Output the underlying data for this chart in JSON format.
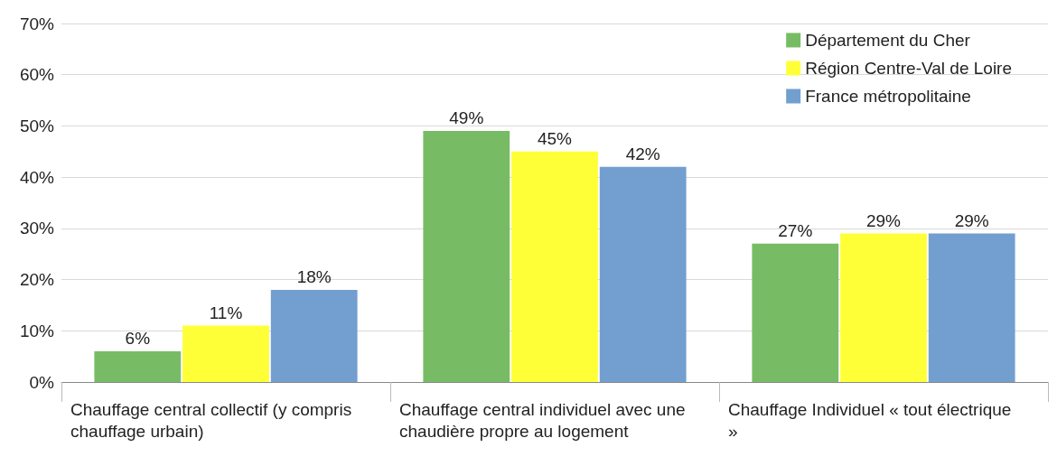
{
  "chart_data": {
    "type": "bar",
    "categories": [
      "Chauffage central collectif (y compris chauffage urbain)",
      "Chauffage central individuel avec une chaudière propre au logement",
      "Chauffage Individuel « tout électrique »"
    ],
    "series": [
      {
        "name": "Département du Cher",
        "color": "#77bc65",
        "values": [
          6,
          49,
          27
        ],
        "value_labels": [
          "6%",
          "49%",
          "27%"
        ]
      },
      {
        "name": "Région Centre-Val de Loire",
        "color": "#ffff38",
        "values": [
          11,
          45,
          29
        ],
        "value_labels": [
          "11%",
          "45%",
          "29%"
        ]
      },
      {
        "name": "France métropolitaine",
        "color": "#729fcf",
        "values": [
          18,
          42,
          29
        ],
        "value_labels": [
          "18%",
          "42%",
          "29%"
        ]
      }
    ],
    "ylim": [
      0,
      70
    ],
    "yticks": [
      {
        "value": 0,
        "label": "0%"
      },
      {
        "value": 10,
        "label": "10%"
      },
      {
        "value": 20,
        "label": "20%"
      },
      {
        "value": 30,
        "label": "30%"
      },
      {
        "value": 40,
        "label": "40%"
      },
      {
        "value": 50,
        "label": "50%"
      },
      {
        "value": 60,
        "label": "60%"
      },
      {
        "value": 70,
        "label": "70%"
      }
    ],
    "grid": "y",
    "legend": "top right"
  }
}
